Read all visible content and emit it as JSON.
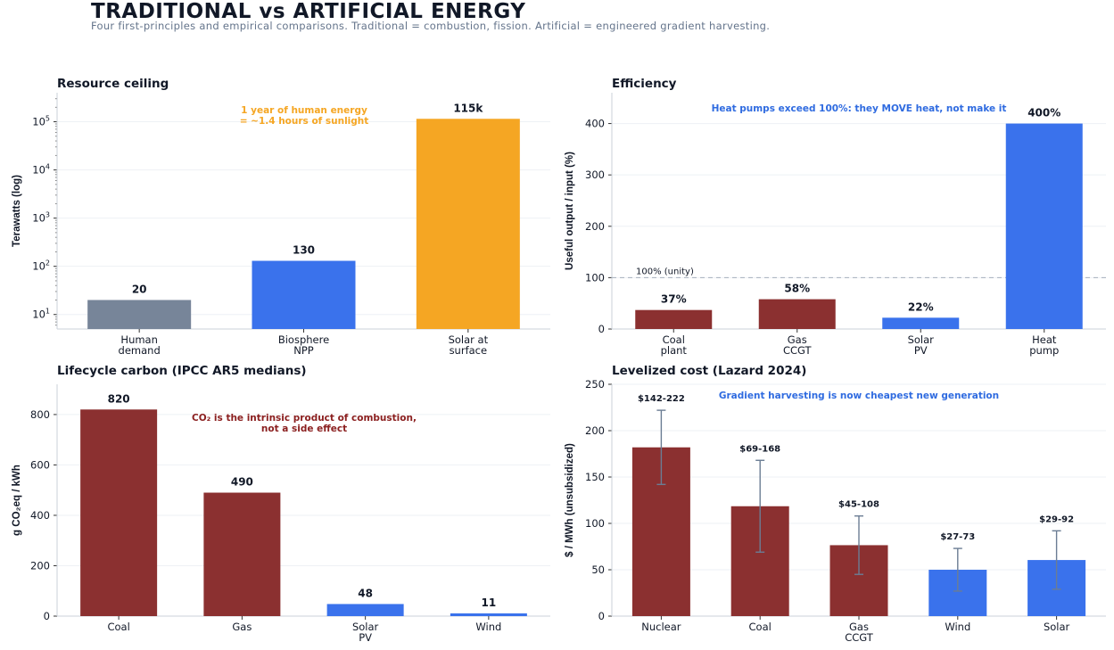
{
  "page": {
    "title": "TRADITIONAL vs ARTIFICIAL ENERGY",
    "subtitle": "Four first-principles and empirical comparisons. Traditional = combustion, fission. Artificial = engineered gradient harvesting."
  },
  "colors": {
    "traditional": "#8b3030",
    "artificial": "#3a72ec",
    "solar_resource": "#f5a623",
    "human": "#778599",
    "grid": "#eef1f5",
    "axis": "#cbd2da",
    "errorbar": "#6b7d94",
    "note_orange": "#f5a623",
    "note_blue": "#2f6be0",
    "note_red": "#8b2020"
  },
  "chart_data": [
    {
      "id": "resource",
      "type": "bar",
      "title": "Resource ceiling",
      "ylabel": "Terawatts (log)",
      "yscale": "log",
      "ylim": [
        5,
        400000
      ],
      "categories": [
        "Human\ndemand",
        "Biosphere\nNPP",
        "Solar at\nsurface"
      ],
      "values": [
        20,
        130,
        115000
      ],
      "labels": [
        "20",
        "130",
        "115k"
      ],
      "bar_colors": [
        "human",
        "artificial",
        "solar_resource"
      ],
      "annotation": "1 year of human energy\n= ~1.4 hours of sunlight",
      "annotation_color": "note_orange",
      "yticks_exp": [
        1,
        2,
        3,
        4,
        5
      ]
    },
    {
      "id": "efficiency",
      "type": "bar",
      "title": "Efficiency",
      "ylabel": "Useful output / input (%)",
      "ylim": [
        0,
        460
      ],
      "yticks": [
        0,
        100,
        200,
        300,
        400
      ],
      "categories": [
        "Coal\nplant",
        "Gas\nCCGT",
        "Solar\nPV",
        "Heat\npump"
      ],
      "values": [
        37,
        58,
        22,
        400
      ],
      "labels": [
        "37%",
        "58%",
        "22%",
        "400%"
      ],
      "bar_colors": [
        "traditional",
        "traditional",
        "artificial",
        "artificial"
      ],
      "reference_line": {
        "value": 100,
        "label": "100% (unity)"
      },
      "annotation": "Heat pumps exceed 100%: they MOVE heat, not make it",
      "annotation_color": "note_blue"
    },
    {
      "id": "carbon",
      "type": "bar",
      "title": "Lifecycle carbon (IPCC AR5 medians)",
      "ylabel": "g CO₂eq / kWh",
      "ylim": [
        0,
        920
      ],
      "yticks": [
        0,
        200,
        400,
        600,
        800
      ],
      "categories": [
        "Coal",
        "Gas",
        "Solar\nPV",
        "Wind"
      ],
      "values": [
        820,
        490,
        48,
        11
      ],
      "labels": [
        "820",
        "490",
        "48",
        "11"
      ],
      "bar_colors": [
        "traditional",
        "traditional",
        "artificial",
        "artificial"
      ],
      "annotation": "CO₂ is the intrinsic product of combustion,\nnot a side effect",
      "annotation_color": "note_red"
    },
    {
      "id": "lcoe",
      "type": "bar",
      "title": "Levelized cost (Lazard 2024)",
      "ylabel": "$ / MWh (unsubsidized)",
      "ylim": [
        0,
        250
      ],
      "yticks": [
        0,
        50,
        100,
        150,
        200,
        250
      ],
      "categories": [
        "Nuclear",
        "Coal",
        "Gas\nCCGT",
        "Wind",
        "Solar"
      ],
      "values": [
        182,
        118.5,
        76.5,
        50,
        60.5
      ],
      "ranges": [
        [
          142,
          222
        ],
        [
          69,
          168
        ],
        [
          45,
          108
        ],
        [
          27,
          73
        ],
        [
          29,
          92
        ]
      ],
      "labels": [
        "$142-222",
        "$69-168",
        "$45-108",
        "$27-73",
        "$29-92"
      ],
      "bar_colors": [
        "traditional",
        "traditional",
        "traditional",
        "artificial",
        "artificial"
      ],
      "annotation": "Gradient harvesting is now cheapest new generation",
      "annotation_color": "note_blue"
    }
  ]
}
